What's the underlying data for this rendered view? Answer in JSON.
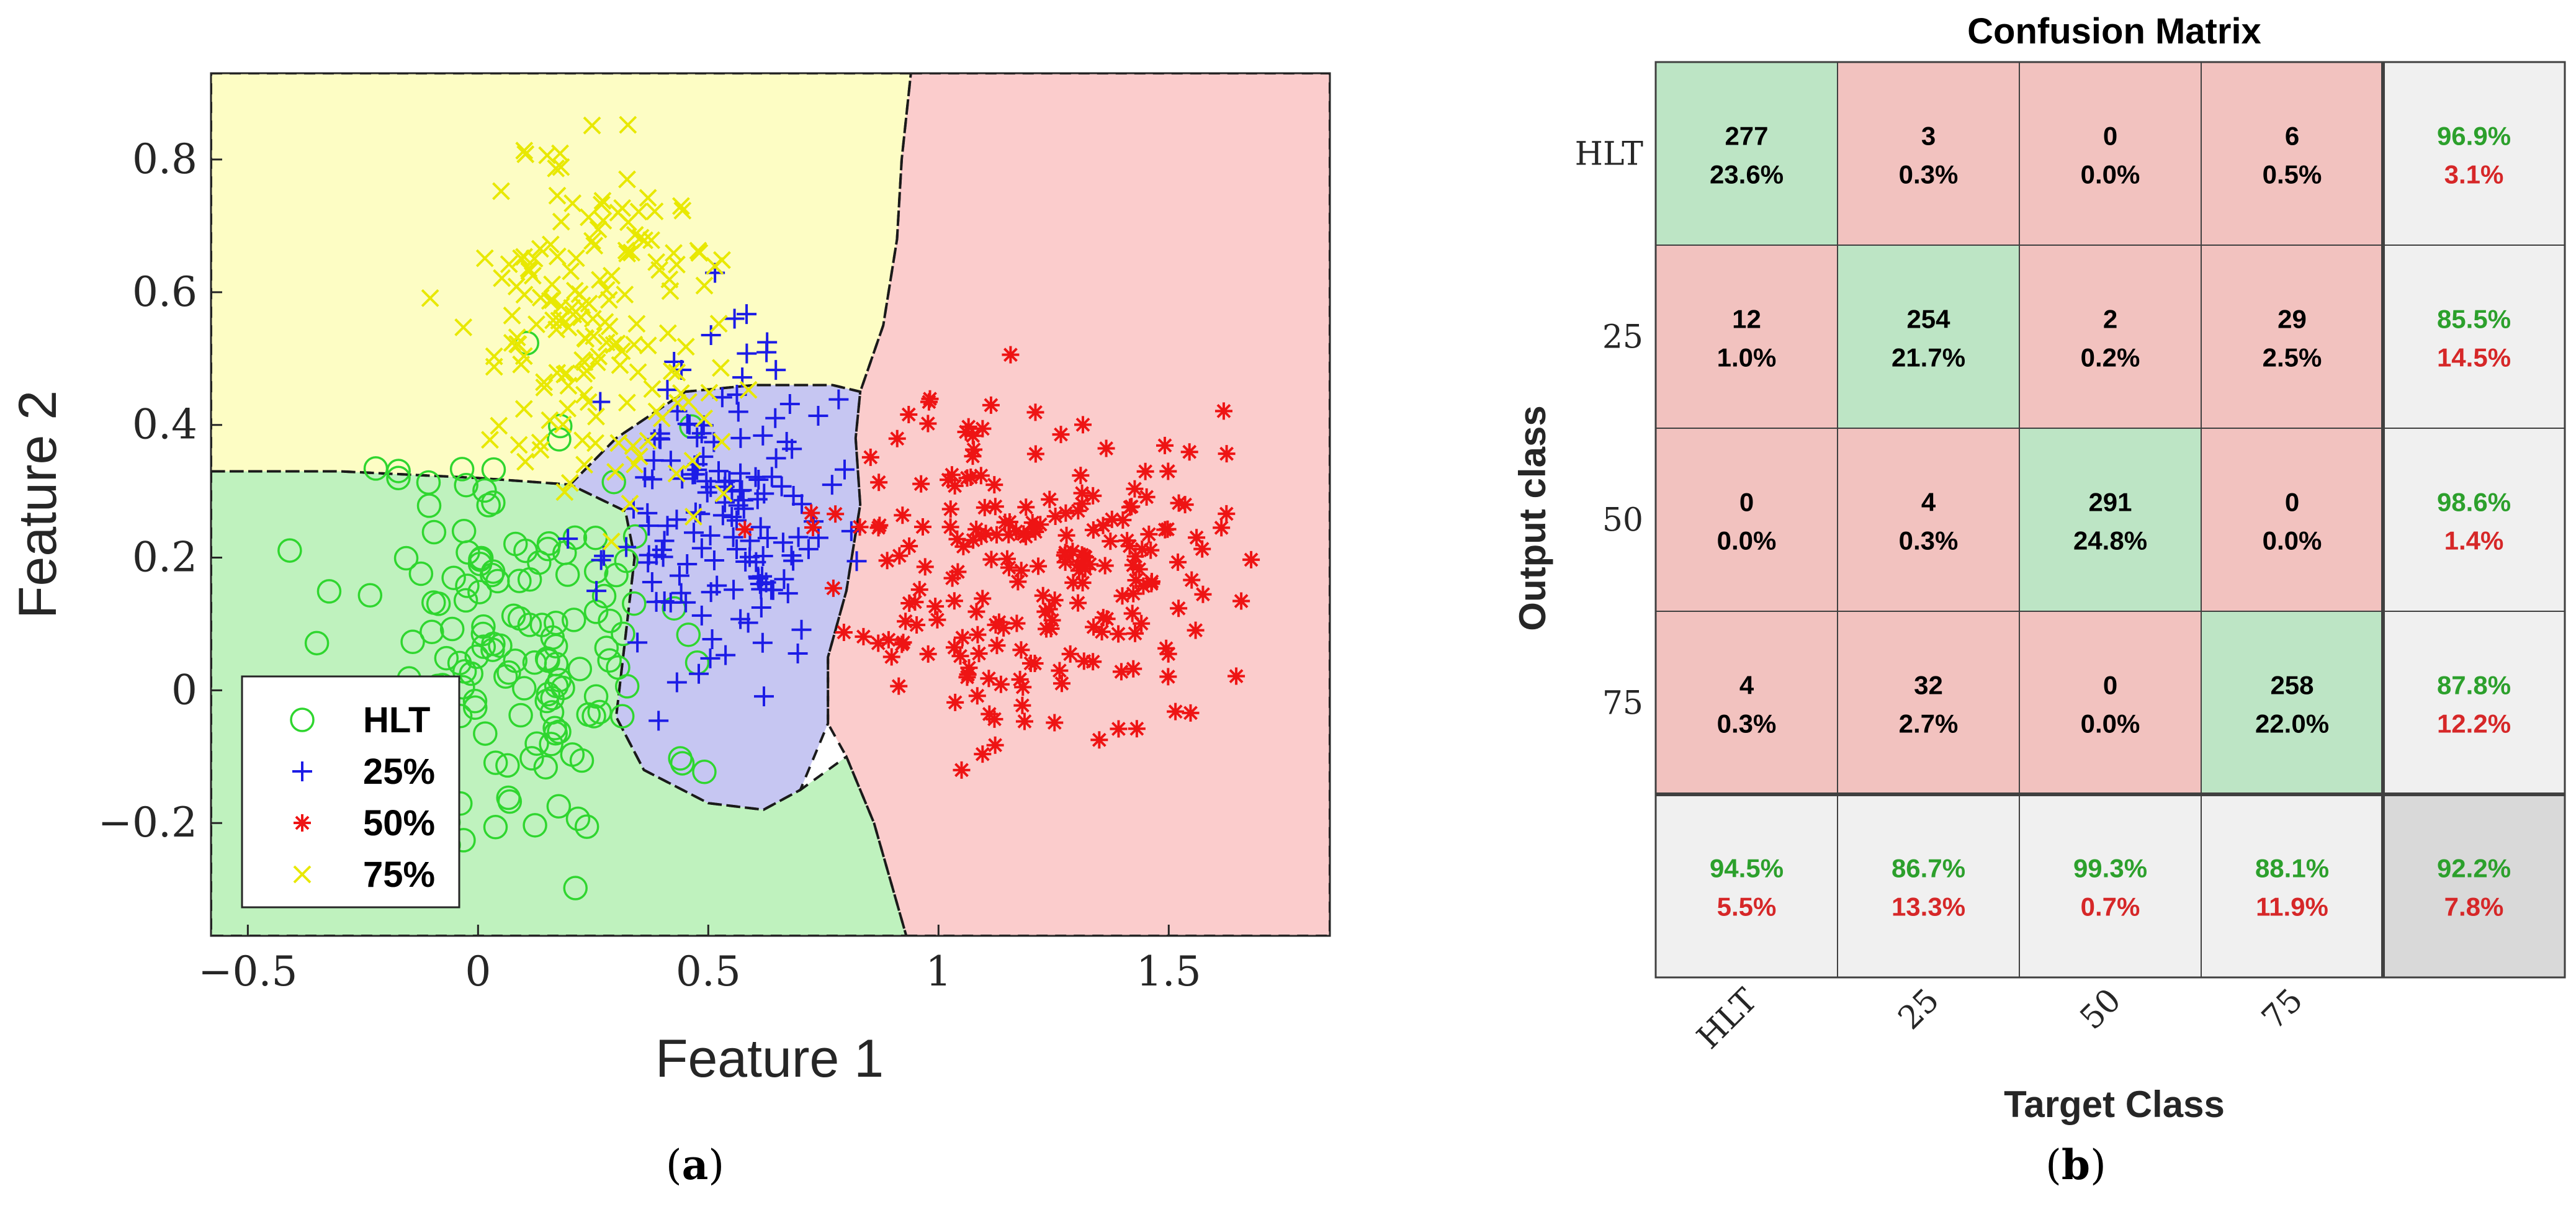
{
  "chart_data": [
    {
      "type": "scatter",
      "subtitle_label": "a",
      "xlabel": "Feature 1",
      "ylabel": "Feature 2",
      "xlim": [
        -0.58,
        1.85
      ],
      "ylim": [
        -0.37,
        0.93
      ],
      "xticks": [
        {
          "value": -0.5,
          "label": "−0.5"
        },
        {
          "value": 0,
          "label": "0"
        },
        {
          "value": 0.5,
          "label": "0.5"
        },
        {
          "value": 1,
          "label": "1"
        },
        {
          "value": 1.5,
          "label": "1.5"
        }
      ],
      "yticks": [
        {
          "value": -0.2,
          "label": "−0.2"
        },
        {
          "value": 0,
          "label": "0"
        },
        {
          "value": 0.2,
          "label": "0.2"
        },
        {
          "value": 0.4,
          "label": "0.4"
        },
        {
          "value": 0.6,
          "label": "0.6"
        },
        {
          "value": 0.8,
          "label": "0.8"
        }
      ],
      "legend_position": "bottom-left",
      "regions": [
        {
          "name": "HLT",
          "color": "#bff2be",
          "boundary": [
            [
              -0.58,
              0.33
            ],
            [
              -0.3,
              0.33
            ],
            [
              0,
              0.32
            ],
            [
              0.2,
              0.31
            ],
            [
              0.32,
              0.27
            ],
            [
              0.34,
              0.2
            ],
            [
              0.32,
              0.08
            ],
            [
              0.3,
              -0.04
            ],
            [
              0.36,
              -0.12
            ],
            [
              0.5,
              -0.17
            ],
            [
              0.62,
              -0.18
            ],
            [
              0.7,
              -0.15
            ],
            [
              0.8,
              -0.1
            ],
            [
              0.86,
              -0.2
            ],
            [
              0.93,
              -0.37
            ],
            [
              -0.58,
              -0.37
            ]
          ]
        },
        {
          "name": "25%",
          "color": "#c6c6f2",
          "boundary": [
            [
              0.2,
              0.31
            ],
            [
              0.3,
              0.38
            ],
            [
              0.45,
              0.45
            ],
            [
              0.6,
              0.46
            ],
            [
              0.77,
              0.46
            ],
            [
              0.83,
              0.45
            ],
            [
              0.82,
              0.38
            ],
            [
              0.83,
              0.28
            ],
            [
              0.8,
              0.15
            ],
            [
              0.76,
              0.05
            ],
            [
              0.76,
              -0.05
            ],
            [
              0.7,
              -0.15
            ],
            [
              0.62,
              -0.18
            ],
            [
              0.5,
              -0.17
            ],
            [
              0.36,
              -0.12
            ],
            [
              0.3,
              -0.04
            ],
            [
              0.32,
              0.08
            ],
            [
              0.34,
              0.2
            ],
            [
              0.32,
              0.27
            ]
          ]
        },
        {
          "name": "50%",
          "color": "#fbcccc",
          "boundary": [
            [
              0.94,
              0.93
            ],
            [
              1.85,
              0.93
            ],
            [
              1.85,
              -0.37
            ],
            [
              0.93,
              -0.37
            ],
            [
              0.86,
              -0.2
            ],
            [
              0.8,
              -0.1
            ],
            [
              0.76,
              -0.05
            ],
            [
              0.76,
              0.05
            ],
            [
              0.8,
              0.15
            ],
            [
              0.83,
              0.28
            ],
            [
              0.82,
              0.38
            ],
            [
              0.83,
              0.45
            ],
            [
              0.88,
              0.55
            ],
            [
              0.91,
              0.68
            ],
            [
              0.92,
              0.8
            ]
          ]
        },
        {
          "name": "75%",
          "color": "#fdfdc4",
          "boundary": [
            [
              -0.58,
              0.93
            ],
            [
              0.94,
              0.93
            ],
            [
              0.92,
              0.8
            ],
            [
              0.91,
              0.68
            ],
            [
              0.88,
              0.55
            ],
            [
              0.83,
              0.45
            ],
            [
              0.77,
              0.46
            ],
            [
              0.6,
              0.46
            ],
            [
              0.45,
              0.45
            ],
            [
              0.3,
              0.38
            ],
            [
              0.2,
              0.31
            ],
            [
              0,
              0.32
            ],
            [
              -0.3,
              0.33
            ],
            [
              -0.58,
              0.33
            ]
          ]
        }
      ],
      "series": [
        {
          "name": "HLT",
          "marker": "circle",
          "color": "#2fd62f",
          "center": [
            0.07,
            0.06
          ],
          "spread": [
            0.17,
            0.17
          ],
          "count": 160,
          "seed": 11
        },
        {
          "name": "25%",
          "marker": "plus",
          "color": "#1c1ce6",
          "center": [
            0.52,
            0.26
          ],
          "spread": [
            0.12,
            0.12
          ],
          "count": 150,
          "seed": 23
        },
        {
          "name": "50%",
          "marker": "star",
          "color": "#ee1414",
          "center": [
            1.2,
            0.19
          ],
          "spread": [
            0.2,
            0.13
          ],
          "count": 220,
          "seed": 37
        },
        {
          "name": "75%",
          "marker": "x",
          "color": "#e8e800",
          "center": [
            0.25,
            0.55
          ],
          "spread": [
            0.14,
            0.14
          ],
          "count": 170,
          "seed": 51
        }
      ]
    },
    {
      "type": "heatmap",
      "title": "Confusion Matrix",
      "subtitle_label": "b",
      "xlabel": "Target Class",
      "ylabel": "Output class",
      "row_labels": [
        "HLT",
        "25",
        "50",
        "75"
      ],
      "col_labels": [
        "HLT",
        "25",
        "50",
        "75"
      ],
      "cells": [
        [
          {
            "count": "277",
            "pct": "23.6%"
          },
          {
            "count": "3",
            "pct": "0.3%"
          },
          {
            "count": "0",
            "pct": "0.0%"
          },
          {
            "count": "6",
            "pct": "0.5%"
          }
        ],
        [
          {
            "count": "12",
            "pct": "1.0%"
          },
          {
            "count": "254",
            "pct": "21.7%"
          },
          {
            "count": "2",
            "pct": "0.2%"
          },
          {
            "count": "29",
            "pct": "2.5%"
          }
        ],
        [
          {
            "count": "0",
            "pct": "0.0%"
          },
          {
            "count": "4",
            "pct": "0.3%"
          },
          {
            "count": "291",
            "pct": "24.8%"
          },
          {
            "count": "0",
            "pct": "0.0%"
          }
        ],
        [
          {
            "count": "4",
            "pct": "0.3%"
          },
          {
            "count": "32",
            "pct": "2.7%"
          },
          {
            "count": "0",
            "pct": "0.0%"
          },
          {
            "count": "258",
            "pct": "22.0%"
          }
        ]
      ],
      "row_summary": [
        {
          "correct": "96.9%",
          "wrong": "3.1%"
        },
        {
          "correct": "85.5%",
          "wrong": "14.5%"
        },
        {
          "correct": "98.6%",
          "wrong": "1.4%"
        },
        {
          "correct": "87.8%",
          "wrong": "12.2%"
        }
      ],
      "col_summary": [
        {
          "correct": "94.5%",
          "wrong": "5.5%"
        },
        {
          "correct": "86.7%",
          "wrong": "13.3%"
        },
        {
          "correct": "99.3%",
          "wrong": "0.7%"
        },
        {
          "correct": "88.1%",
          "wrong": "11.9%"
        }
      ],
      "overall": {
        "correct": "92.2%",
        "wrong": "7.8%"
      },
      "colors": {
        "diagonal": "#bde5c5",
        "off_diagonal": "#f2c2bf",
        "summary": "#f0f0f0",
        "overall": "#d9d9d9",
        "correct_text": "#2ca02c",
        "wrong_text": "#d62728"
      }
    }
  ]
}
